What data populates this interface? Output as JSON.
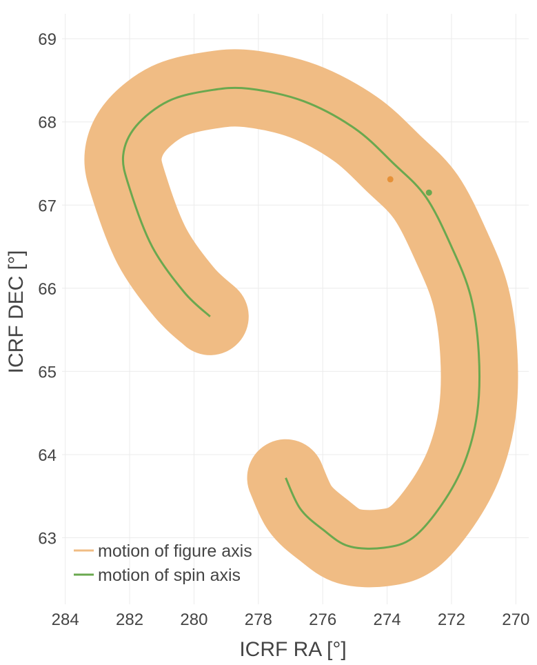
{
  "chart_data": {
    "type": "line",
    "title": "",
    "xlabel": "ICRF RA [°]",
    "ylabel": "ICRF DEC [°]",
    "x_reversed": true,
    "xlim": [
      284.1,
      269.6
    ],
    "ylim": [
      62.2,
      69.3
    ],
    "xticks": [
      "284",
      "282",
      "280",
      "278",
      "276",
      "274",
      "272",
      "270"
    ],
    "yticks": [
      "63",
      "64",
      "65",
      "66",
      "67",
      "68",
      "69"
    ],
    "grid": true,
    "legend_position": "bottom-left",
    "series": [
      {
        "name": "motion of figure axis",
        "color": "#f0bc84",
        "style": "thick-band",
        "x": [
          279.5,
          280.3,
          281.3,
          282.0,
          282.2,
          281.8,
          280.8,
          279.5,
          278.3,
          276.6,
          275.0,
          273.8,
          272.8,
          272.0,
          271.4,
          271.15,
          271.2,
          271.6,
          272.3,
          273.2,
          274.1,
          275.2,
          276.0,
          276.7,
          277.15
        ],
        "y": [
          65.66,
          65.95,
          66.5,
          67.2,
          67.6,
          67.95,
          68.25,
          68.38,
          68.4,
          68.25,
          67.92,
          67.5,
          67.1,
          66.5,
          65.9,
          65.2,
          64.5,
          63.9,
          63.4,
          63.0,
          62.88,
          62.9,
          63.1,
          63.35,
          63.72
        ]
      },
      {
        "name": "motion of spin axis",
        "color": "#6aa84f",
        "style": "line",
        "x": [
          279.5,
          280.3,
          281.3,
          282.0,
          282.2,
          281.8,
          280.8,
          279.5,
          278.3,
          276.6,
          275.0,
          273.8,
          272.8,
          272.0,
          271.4,
          271.15,
          271.2,
          271.6,
          272.3,
          273.2,
          274.1,
          275.2,
          276.0,
          276.7,
          277.15
        ],
        "y": [
          65.66,
          65.95,
          66.5,
          67.2,
          67.6,
          67.95,
          68.25,
          68.38,
          68.4,
          68.25,
          67.92,
          67.5,
          67.1,
          66.5,
          65.9,
          65.2,
          64.5,
          63.9,
          63.4,
          63.0,
          62.88,
          62.9,
          63.1,
          63.35,
          63.72
        ]
      }
    ],
    "points": [
      {
        "series": "motion of figure axis",
        "x": 273.9,
        "y": 67.31,
        "color": "#e69138"
      },
      {
        "series": "motion of spin axis",
        "x": 272.7,
        "y": 67.15,
        "color": "#6aa84f"
      }
    ]
  }
}
